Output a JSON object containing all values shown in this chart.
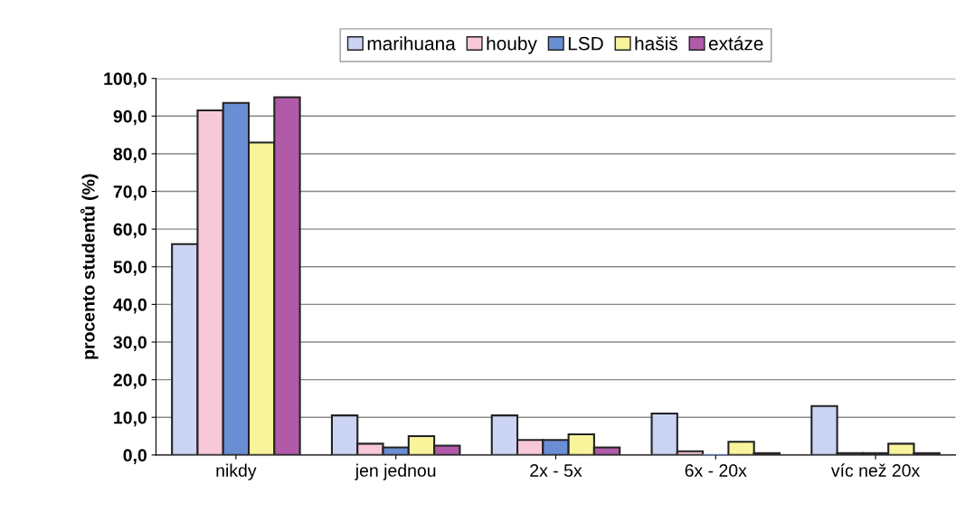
{
  "chart_data": {
    "type": "bar",
    "ylabel": "procento studentů (%)",
    "categories": [
      "nikdy",
      "jen jednou",
      "2x - 5x",
      "6x - 20x",
      "víc než 20x"
    ],
    "series": [
      {
        "name": "marihuana",
        "color": "#ccd4f4",
        "values": [
          56,
          10.5,
          10.5,
          11,
          13
        ]
      },
      {
        "name": "houby",
        "color": "#f8c8d8",
        "values": [
          91.5,
          3,
          4,
          1,
          0.5
        ]
      },
      {
        "name": "LSD",
        "color": "#6a8ed4",
        "values": [
          93.5,
          2,
          4,
          0,
          0.5
        ]
      },
      {
        "name": "hašiš",
        "color": "#f8f49c",
        "values": [
          83,
          5,
          5.5,
          3.5,
          3
        ]
      },
      {
        "name": "extáze",
        "color": "#b05aa8",
        "values": [
          95,
          2.5,
          2,
          0.5,
          0.5
        ]
      }
    ],
    "ylim": [
      0,
      100
    ],
    "yticks": [
      {
        "value": 0,
        "label": "0,0"
      },
      {
        "value": 10,
        "label": "10,0"
      },
      {
        "value": 20,
        "label": "20,0"
      },
      {
        "value": 30,
        "label": "30,0"
      },
      {
        "value": 40,
        "label": "40,0"
      },
      {
        "value": 50,
        "label": "50,0"
      },
      {
        "value": 60,
        "label": "60,0"
      },
      {
        "value": 70,
        "label": "70,0"
      },
      {
        "value": 80,
        "label": "80,0"
      },
      {
        "value": 90,
        "label": "90,0"
      },
      {
        "value": 100,
        "label": "100,0"
      }
    ],
    "grid": "y",
    "legend": "top"
  }
}
